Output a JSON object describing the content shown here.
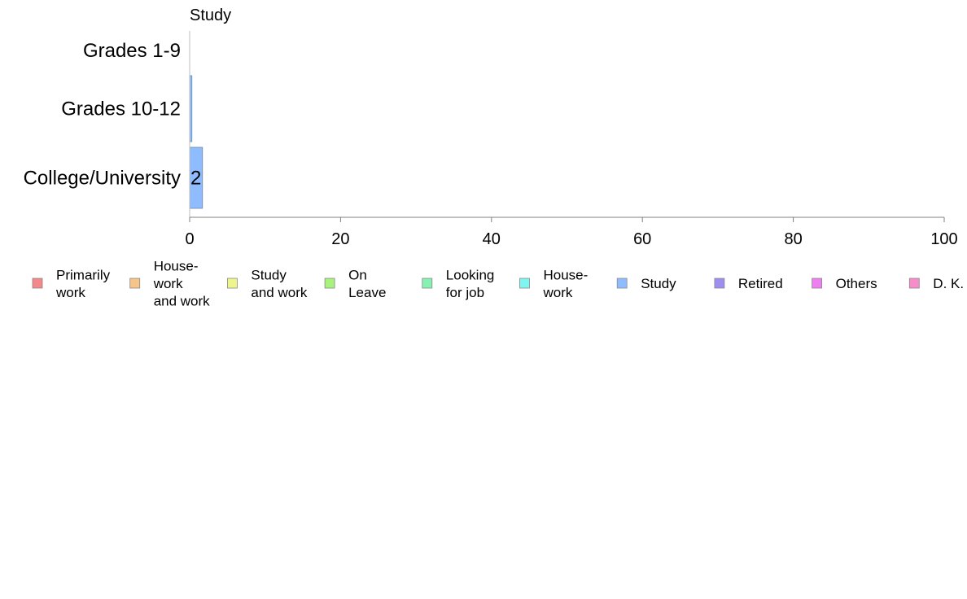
{
  "chart_data": {
    "type": "bar",
    "orientation": "horizontal",
    "title": "Study",
    "xlabel": "",
    "ylabel": "",
    "categories": [
      "Grades 1-9",
      "Grades 10-12",
      "College/University"
    ],
    "series": [
      {
        "name": "Study",
        "values": [
          0,
          0.3,
          1.7
        ]
      }
    ],
    "data_labels": [
      "",
      "",
      "2"
    ],
    "xlim": [
      0,
      100
    ],
    "xticks": [
      0,
      20,
      40,
      60,
      80,
      100
    ],
    "grid": false,
    "bar_color": "#8fbcff",
    "legend_position": "bottom",
    "legend": [
      {
        "label": "Primarily\nwork",
        "color": "#f4878a"
      },
      {
        "label": "House-\nwork\nand work",
        "color": "#f7c58a"
      },
      {
        "label": "Study\nand work",
        "color": "#eef58a"
      },
      {
        "label": "On\nLeave",
        "color": "#a8f27e"
      },
      {
        "label": "Looking\nfor job",
        "color": "#86f2b2"
      },
      {
        "label": "House-\nwork",
        "color": "#7ff5f2"
      },
      {
        "label": "Study",
        "color": "#8fbcff"
      },
      {
        "label": "Retired",
        "color": "#9f8ef2"
      },
      {
        "label": "Others",
        "color": "#ef7ef2"
      },
      {
        "label": "D. K.",
        "color": "#f78ccb"
      }
    ]
  }
}
